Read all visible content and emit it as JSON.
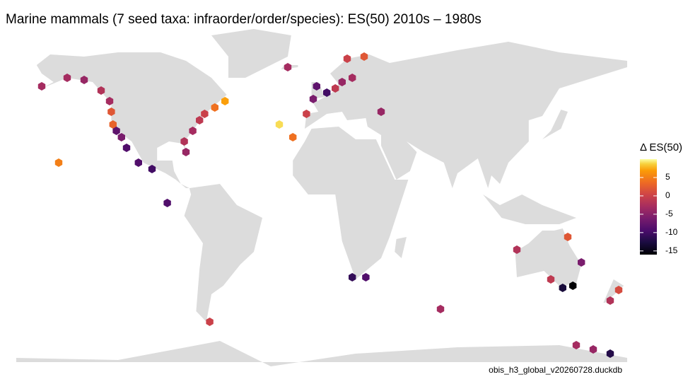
{
  "title": "Marine mammals (7 seed taxa: infraorder/order/species): ES(50) 2010s – 1980s",
  "legend": {
    "title": "Δ ES(50)",
    "lim": [
      -16,
      10
    ],
    "ticks": [
      5,
      0,
      -5,
      -10,
      -15
    ]
  },
  "caption": "obis_h3_global_v20260728.duckdb",
  "cells": [
    {
      "lon": -155,
      "lat": 20,
      "value": 5
    },
    {
      "lon": -150,
      "lat": 60,
      "value": -3
    },
    {
      "lon": -140,
      "lat": 59,
      "value": -4
    },
    {
      "lon": -165,
      "lat": 56,
      "value": -3
    },
    {
      "lon": -130,
      "lat": 54,
      "value": -2
    },
    {
      "lon": -125,
      "lat": 49,
      "value": -3
    },
    {
      "lon": -124,
      "lat": 44,
      "value": 2
    },
    {
      "lon": -123,
      "lat": 38,
      "value": 3
    },
    {
      "lon": -121,
      "lat": 35,
      "value": -8
    },
    {
      "lon": -118,
      "lat": 32,
      "value": -6
    },
    {
      "lon": -115,
      "lat": 27,
      "value": -9
    },
    {
      "lon": -108,
      "lat": 20,
      "value": -9
    },
    {
      "lon": -100,
      "lat": 17,
      "value": -10
    },
    {
      "lon": -91,
      "lat": 1,
      "value": -9
    },
    {
      "lon": -80,
      "lat": 25,
      "value": -4
    },
    {
      "lon": -81,
      "lat": 30,
      "value": -2
    },
    {
      "lon": -76,
      "lat": 35,
      "value": -3
    },
    {
      "lon": -72,
      "lat": 40,
      "value": -1
    },
    {
      "lon": -69,
      "lat": 43,
      "value": 0
    },
    {
      "lon": -63,
      "lat": 46,
      "value": 4
    },
    {
      "lon": -57,
      "lat": 49,
      "value": 7
    },
    {
      "lon": -25,
      "lat": 38,
      "value": 9
    },
    {
      "lon": -17,
      "lat": 32,
      "value": 4
    },
    {
      "lon": -20,
      "lat": 65,
      "value": -3
    },
    {
      "lon": -9,
      "lat": 43,
      "value": 0
    },
    {
      "lon": -5,
      "lat": 50,
      "value": -6
    },
    {
      "lon": -3,
      "lat": 56,
      "value": -8
    },
    {
      "lon": 3,
      "lat": 53,
      "value": -10
    },
    {
      "lon": 8,
      "lat": 55,
      "value": -1
    },
    {
      "lon": 12,
      "lat": 58,
      "value": -4
    },
    {
      "lon": 18,
      "lat": 60,
      "value": -3
    },
    {
      "lon": 25,
      "lat": 70,
      "value": 2
    },
    {
      "lon": 15,
      "lat": 69,
      "value": 0
    },
    {
      "lon": 35,
      "lat": 44,
      "value": -4
    },
    {
      "lon": 18,
      "lat": -34,
      "value": -11
    },
    {
      "lon": 26,
      "lat": -34,
      "value": -9
    },
    {
      "lon": -66,
      "lat": -55,
      "value": 0
    },
    {
      "lon": 70,
      "lat": -49,
      "value": -3
    },
    {
      "lon": 145,
      "lat": -15,
      "value": 2
    },
    {
      "lon": 115,
      "lat": -21,
      "value": -2
    },
    {
      "lon": 153,
      "lat": -27,
      "value": -6
    },
    {
      "lon": 142,
      "lat": -39,
      "value": -13
    },
    {
      "lon": 148,
      "lat": -38,
      "value": -16
    },
    {
      "lon": 135,
      "lat": -35,
      "value": -1
    },
    {
      "lon": 170,
      "lat": -45,
      "value": -2
    },
    {
      "lon": 175,
      "lat": -40,
      "value": 1
    },
    {
      "lon": 160,
      "lat": -68,
      "value": -4
    },
    {
      "lon": 170,
      "lat": -70,
      "value": -12
    },
    {
      "lon": 150,
      "lat": -66,
      "value": -3
    }
  ]
}
